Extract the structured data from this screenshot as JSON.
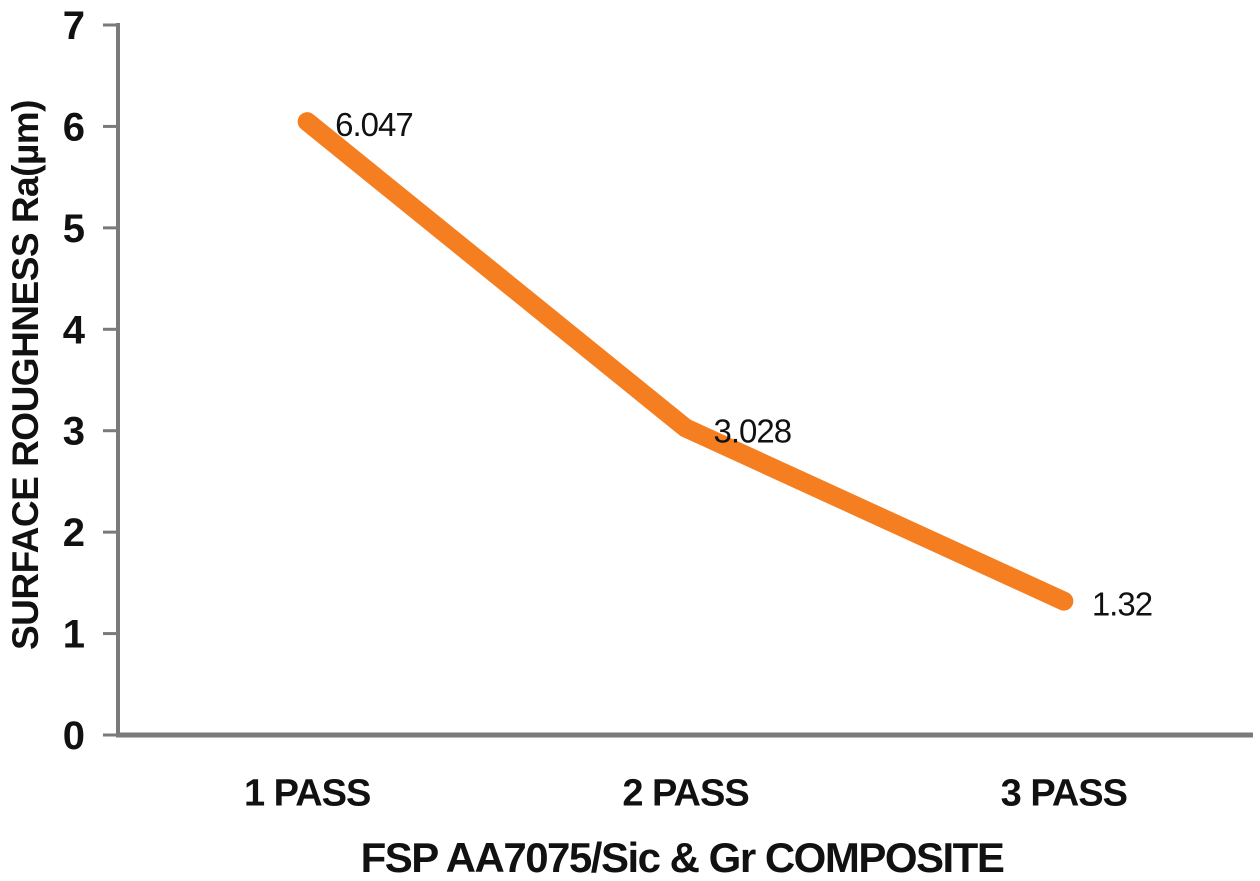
{
  "chart_data": {
    "type": "line",
    "title": "",
    "xlabel": "FSP AA7075/Sic & Gr COMPOSITE",
    "ylabel": "SURFACE ROUGHNESS  Ra(µm)",
    "categories": [
      "1 PASS",
      "2 PASS",
      "3 PASS"
    ],
    "values": [
      6.047,
      3.028,
      1.32
    ],
    "data_labels": [
      "6.047",
      "3.028",
      "1.32"
    ],
    "ylim": [
      0,
      7
    ],
    "yticks": [
      0,
      1,
      2,
      3,
      4,
      5,
      6,
      7
    ],
    "grid": false,
    "legend": false,
    "line_color": "#F57E20",
    "axis_color": "#7a7a7a",
    "text_color": "#111111"
  }
}
